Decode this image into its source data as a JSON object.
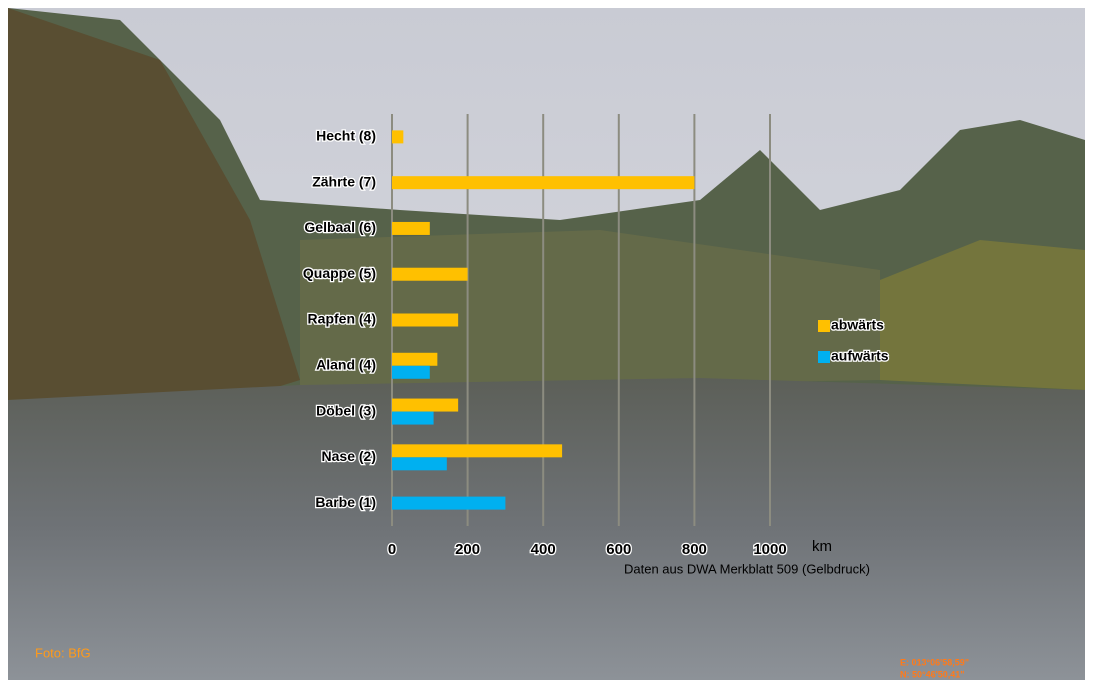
{
  "chart_data": {
    "type": "bar",
    "orientation": "horizontal",
    "categories": [
      "Hecht (8)",
      "Zährte (7)",
      "Gelbaal (6)",
      "Quappe (5)",
      "Rapfen (4)",
      "Aland (4)",
      "Döbel (3)",
      "Nase (2)",
      "Barbe (1)"
    ],
    "series": [
      {
        "name": "abwärts",
        "color": "#ffc000",
        "values": [
          30,
          800,
          100,
          200,
          175,
          120,
          175,
          450,
          null
        ]
      },
      {
        "name": "aufwärts",
        "color": "#00b0f0",
        "values": [
          null,
          null,
          null,
          null,
          null,
          100,
          110,
          145,
          300
        ]
      }
    ],
    "xlim": [
      0,
      1000
    ],
    "xticks": [
      0,
      200,
      400,
      600,
      800,
      1000
    ],
    "x_label": "km",
    "note": "Daten aus DWA Merkblatt 509 (Gelbdruck)",
    "grid": true,
    "legend": "right"
  },
  "photo_credit": "Foto: BfG",
  "coordinates": [
    "E: 013°06'58,59\"",
    "N: 50°46'50,41\""
  ]
}
